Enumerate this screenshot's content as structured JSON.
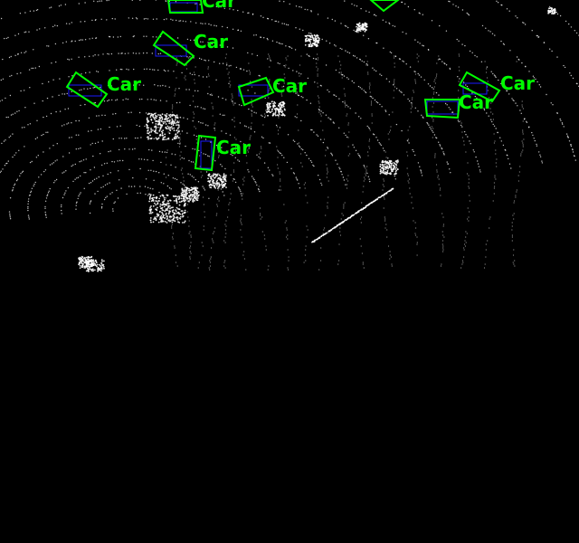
{
  "view": {
    "type": "lidar-bird's-eye-view",
    "background_color": "#000000",
    "point_color": "#ffffff",
    "box_color": "#00ff00",
    "ground_truth_box_color": "#1a1aff",
    "label_color": "#00ff00"
  },
  "detections": [
    {
      "label": "Car"
    },
    {
      "label": "Car"
    },
    {
      "label": "Car"
    },
    {
      "label": "Car"
    },
    {
      "label": "Car"
    },
    {
      "label": "Car"
    },
    {
      "label": "Car"
    },
    {
      "label": "Car"
    }
  ]
}
